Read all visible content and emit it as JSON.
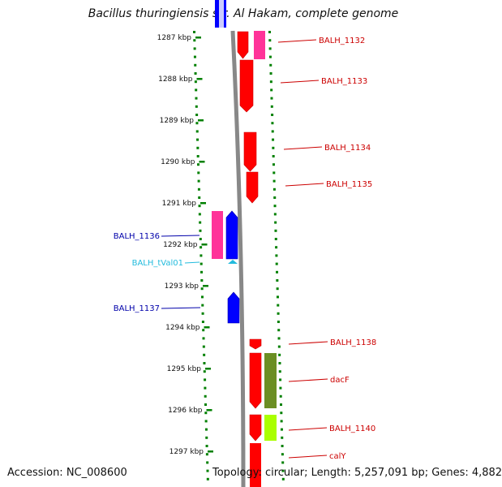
{
  "title": "Bacillus thuringiensis str. Al Hakam, complete genome",
  "footer": {
    "accession": "Accession: NC_008600",
    "summary": "Topology: circular; Length: 5,257,091 bp; Genes: 4,882"
  },
  "axis": {
    "ticks": [
      "1287 kbp",
      "1288 kbp",
      "1289 kbp",
      "1290 kbp",
      "1291 kbp",
      "1292 kbp",
      "1293 kbp",
      "1294 kbp",
      "1295 kbp",
      "1296 kbp",
      "1297 kbp"
    ]
  },
  "genes": {
    "right_labels": [
      {
        "text": "BALH_1132",
        "color": "#cc0000"
      },
      {
        "text": "BALH_1133",
        "color": "#cc0000"
      },
      {
        "text": "BALH_1134",
        "color": "#cc0000"
      },
      {
        "text": "BALH_1135",
        "color": "#cc0000"
      },
      {
        "text": "BALH_1138",
        "color": "#cc0000"
      },
      {
        "text": "dacF",
        "color": "#cc0000"
      },
      {
        "text": "BALH_1140",
        "color": "#cc0000"
      },
      {
        "text": "calY",
        "color": "#cc0000"
      }
    ],
    "left_labels": [
      {
        "text": "BALH_1136",
        "color": "#0000aa"
      },
      {
        "text": "BALH_tVal01",
        "color": "#22bbdd"
      },
      {
        "text": "BALH_1137",
        "color": "#0000aa"
      }
    ]
  },
  "colors": {
    "forward_cds": "#ff0000",
    "reverse_cds": "#0000ff",
    "pink": "#ff3399",
    "olive": "#6b8e23",
    "lime": "#aaff00",
    "trna": "#22bbdd",
    "backbone": "#888888",
    "dotted": "#008000"
  }
}
